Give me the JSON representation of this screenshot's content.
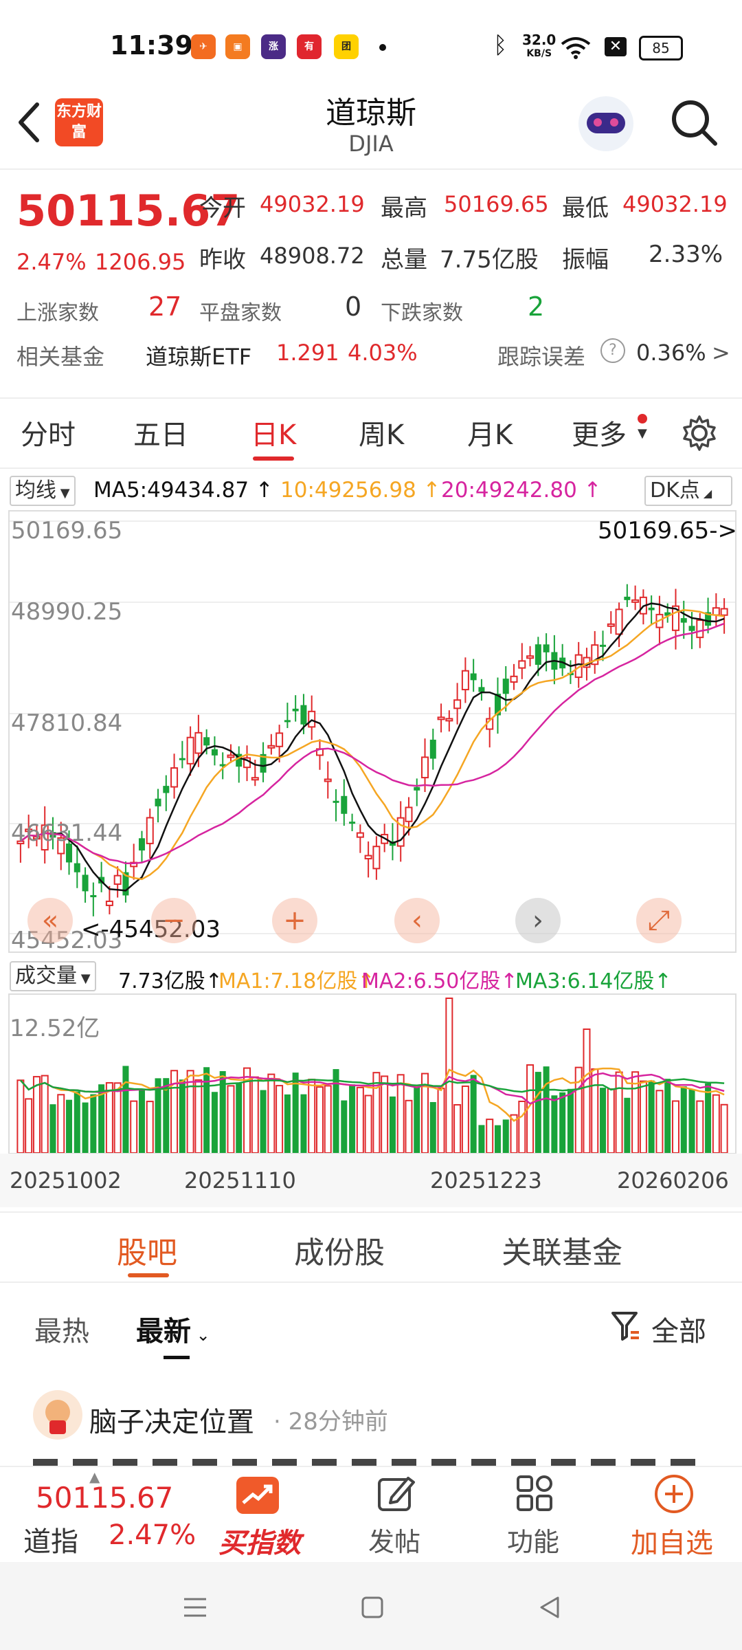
{
  "status_bar": {
    "time": "11:39",
    "net_speed": "32.0",
    "net_unit": "KB/S",
    "battery": "85"
  },
  "header": {
    "logo_text": "东方财富",
    "title": "道琼斯",
    "subtitle": "DJIA"
  },
  "quote": {
    "price": "50115.67",
    "change_pct": "2.47%",
    "change_abs": "1206.95",
    "open_label": "今开",
    "open": "49032.19",
    "high_label": "最高",
    "high": "50169.65",
    "low_label": "最低",
    "low": "49032.19",
    "prev_close_label": "昨收",
    "prev_close": "48908.72",
    "volume_label": "总量",
    "volume": "7.75亿股",
    "amplitude_label": "振幅",
    "amplitude": "2.33%",
    "up_count_label": "上涨家数",
    "up_count": "27",
    "flat_count_label": "平盘家数",
    "flat_count": "0",
    "down_count_label": "下跌家数",
    "down_count": "2",
    "fund_label": "相关基金",
    "fund_name": "道琼斯ETF",
    "fund_price": "1.291",
    "fund_change": "4.03%",
    "tracking_label": "跟踪误差",
    "tracking_value": "0.36%",
    "tracking_arrow": ">"
  },
  "chart_tabs": [
    "分时",
    "五日",
    "日K",
    "周K",
    "月K",
    "更多"
  ],
  "ma": {
    "selector": "均线",
    "ma5": "MA5:49434.87",
    "ma10": "10:49256.98",
    "ma20": "20:49242.80",
    "dk_button": "DK点",
    "color_ma5": "#111111",
    "color_ma10": "#f5a623",
    "color_ma20": "#d6249f"
  },
  "kline": {
    "y_labels": [
      "50169.65",
      "48990.25",
      "47810.84",
      "46631.44",
      "45452.03"
    ],
    "max_marker": "50169.65->",
    "min_marker": "<-45452.03"
  },
  "volume": {
    "selector": "成交量",
    "current": "7.73亿股",
    "ma1": "MA1:7.18亿股",
    "ma2": "MA2:6.50亿股",
    "ma3": "MA3:6.14亿股",
    "max_label": "12.52亿",
    "color_ma1": "#f5a623",
    "color_ma2": "#d6249f",
    "color_ma3": "#19a33a"
  },
  "dates": [
    "20251002",
    "20251110",
    "20251223",
    "20260206"
  ],
  "colors": {
    "up": "#e0292c",
    "down": "#19a33a",
    "accent": "#e25a22"
  },
  "subtabs": [
    "股吧",
    "成份股",
    "关联基金"
  ],
  "filters": {
    "hot": "最热",
    "latest": "最新",
    "all": "全部"
  },
  "post": {
    "author": "脑子决定位置",
    "time": "28分钟前"
  },
  "bottom_bar": {
    "price": "50115.67",
    "name": "道指",
    "change": "2.47%",
    "buy_label": "买指数",
    "post_label": "发帖",
    "func_label": "功能",
    "add_label": "加自选"
  }
}
